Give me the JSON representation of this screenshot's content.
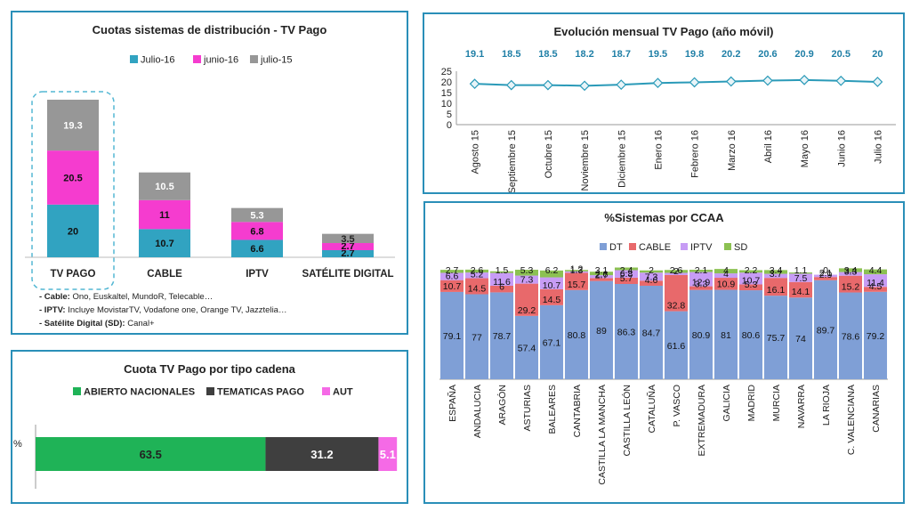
{
  "colors": {
    "panel_border": "#2a8fb8",
    "julio16": "#31a3c1",
    "junio16": "#f53ccf",
    "julio15": "#979797",
    "line": "#2a9ab8",
    "dt": "#7f9fd6",
    "cable": "#e8696b",
    "iptv": "#c79cf5",
    "sd": "#8cc152",
    "abiertos": "#1fb357",
    "tematicas": "#3f3f3f",
    "aut": "#f56ae6"
  },
  "panel1": {
    "title": "Cuotas sistemas de distribución - TV Pago",
    "notes": [
      {
        "label": "- Cable:",
        "text": "Ono, Euskaltel, MundoR, Telecable…"
      },
      {
        "label": "- IPTV:",
        "text": "Incluye MovistarTV, Vodafone one, Orange TV, Jazztelia…"
      },
      {
        "label": "- Satélite Digital (SD):",
        "text": "Canal+"
      }
    ]
  },
  "panel2": {
    "title": "Evolución mensual TV Pago (año móvil)"
  },
  "panel3": {
    "title": "Cuota TV Pago por tipo cadena"
  },
  "panel4": {
    "title": "%Sistemas por CCAA"
  },
  "chart_data": [
    {
      "type": "bar",
      "stacked": true,
      "title": "Cuotas sistemas de distribución - TV Pago",
      "categories": [
        "TV PAGO",
        "CABLE",
        "IPTV",
        "SATÉLITE DIGITAL"
      ],
      "series": [
        {
          "name": "Julio-16",
          "values": [
            20,
            10.7,
            6.6,
            2.7
          ]
        },
        {
          "name": "junio-16",
          "values": [
            20.5,
            11,
            6.8,
            2.7
          ]
        },
        {
          "name": "julio-15",
          "values": [
            19.3,
            10.5,
            5.3,
            3.5
          ]
        }
      ],
      "legend": "top"
    },
    {
      "type": "line",
      "title": "Evolución mensual TV Pago (año móvil)",
      "x": [
        "Agosto 15",
        "Septiembre 15",
        "Octubre 15",
        "Noviembre 15",
        "Diciembre 15",
        "Enero 16",
        "Febrero 16",
        "Marzo 16",
        "Abril 16",
        "Mayo 16",
        "Junio 16",
        "Julio 16"
      ],
      "y": [
        19.1,
        18.5,
        18.5,
        18.2,
        18.7,
        19.5,
        19.8,
        20.2,
        20.6,
        20.9,
        20.5,
        20
      ],
      "yticks": [
        "0",
        "5",
        "10",
        "15",
        "20",
        "25"
      ],
      "ylim": [
        0,
        25
      ]
    },
    {
      "type": "bar",
      "orientation": "horizontal",
      "stacked": true,
      "title": "Cuota TV Pago por tipo cadena",
      "categories": [
        "%"
      ],
      "series": [
        {
          "name": "ABIERTO NACIONALES",
          "values": [
            63.5
          ]
        },
        {
          "name": "TEMATICAS PAGO",
          "values": [
            31.2
          ]
        },
        {
          "name": "AUT",
          "values": [
            5.1
          ]
        }
      ],
      "legend": "top"
    },
    {
      "type": "bar",
      "stacked": true,
      "title": "%Sistemas por CCAA",
      "categories": [
        "ESPAÑA",
        "ANDALUCIA",
        "ARAGÓN",
        "ASTURIAS",
        "BALEARES",
        "CANTABRIA",
        "CASTILLA LA MANCHA",
        "CASTILLA LEÓN",
        "CATALUÑA",
        "P. VASCO",
        "EXTREMADURA",
        "GALICIA",
        "MADRID",
        "MURCIA",
        "NAVARRA",
        "LA RIOJA",
        "C. VALENCIANA",
        "CANARIAS"
      ],
      "series": [
        {
          "name": "DT",
          "values": [
            79.1,
            77,
            78.7,
            57.4,
            67.1,
            80.8,
            89,
            86.3,
            84.7,
            61.6,
            80.9,
            81,
            80.6,
            75.7,
            74,
            89.7,
            78.6,
            79.2
          ]
        },
        {
          "name": "CABLE",
          "values": [
            10.7,
            14.5,
            6,
            29.2,
            14.5,
            15.7,
            2.7,
            5.7,
            4.6,
            32.8,
            3.3,
            10.9,
            5.3,
            16.1,
            14.1,
            2.9,
            15.2,
            4.5
          ]
        },
        {
          "name": "IPTV",
          "values": [
            6.6,
            5.2,
            11.6,
            7.3,
            10.7,
            1.2,
            2.6,
            6.8,
            7.3,
            2,
            12.9,
            4,
            10.7,
            3.7,
            7.5,
            2.1,
            3.3,
            11.4
          ]
        },
        {
          "name": "SD",
          "values": [
            2.7,
            2.6,
            1.5,
            5.3,
            6.2,
            1.3,
            3.1,
            2.4,
            2,
            2.6,
            2.1,
            4,
            2.2,
            3.4,
            1.1,
            0,
            3.4,
            4.4
          ]
        }
      ],
      "ylim": [
        0,
        100
      ],
      "legend": "top"
    }
  ]
}
